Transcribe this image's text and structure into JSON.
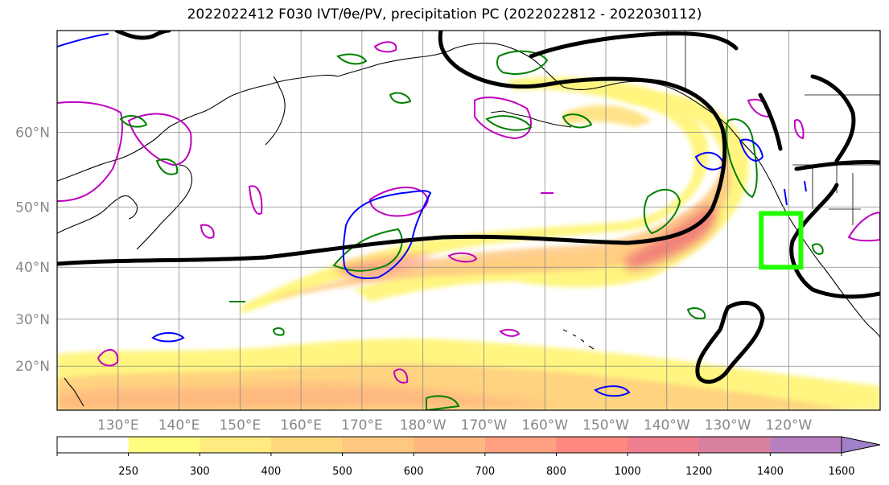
{
  "title": "2022022412 F030 IVT/θe/PV, precipitation PC (2022022812 - 2022030112)",
  "chart_data": {
    "type": "heatmap",
    "map_extent": {
      "lon_range": [
        120,
        255
      ],
      "lat_range": [
        10,
        70
      ]
    },
    "lat_ticks": [
      {
        "value": 20,
        "label": "20°N"
      },
      {
        "value": 30,
        "label": "30°N"
      },
      {
        "value": 40,
        "label": "40°N"
      },
      {
        "value": 50,
        "label": "50°N"
      },
      {
        "value": 60,
        "label": "60°N"
      }
    ],
    "lon_ticks": [
      {
        "value": 130,
        "label": "130°E"
      },
      {
        "value": 140,
        "label": "140°E"
      },
      {
        "value": 150,
        "label": "150°E"
      },
      {
        "value": 160,
        "label": "160°E"
      },
      {
        "value": 170,
        "label": "170°E"
      },
      {
        "value": 180,
        "label": "180°W"
      },
      {
        "value": 190,
        "label": "170°W"
      },
      {
        "value": 200,
        "label": "160°W"
      },
      {
        "value": 210,
        "label": "150°W"
      },
      {
        "value": 220,
        "label": "140°W"
      },
      {
        "value": 230,
        "label": "130°W"
      },
      {
        "value": 240,
        "label": "120°W"
      }
    ],
    "grid": true,
    "colorbar": {
      "levels": [
        250,
        300,
        400,
        500,
        600,
        700,
        800,
        1000,
        1200,
        1400,
        1600
      ],
      "labels": [
        "250",
        "300",
        "400",
        "500",
        "600",
        "700",
        "800",
        "1000",
        "1200",
        "1400",
        "1600"
      ],
      "colors": [
        "#ffffff",
        "#fffd80",
        "#ffeb80",
        "#ffd880",
        "#ffc880",
        "#ffb880",
        "#ffa080",
        "#ff8880",
        "#f08090",
        "#d880a0",
        "#b880c0",
        "#a080c8"
      ],
      "extend": "max"
    },
    "ivt_core_regions": [
      {
        "lon": [
          157,
          183
        ],
        "lat": [
          30,
          36.5
        ],
        "ivt": 700
      },
      {
        "lon": [
          195,
          223
        ],
        "lat": [
          31,
          40
        ],
        "ivt": 1000
      },
      {
        "lon": [
          200,
          235
        ],
        "lat": [
          50,
          58
        ],
        "ivt": 400
      }
    ],
    "highlight_box": {
      "lon": [
        235.5,
        242
      ],
      "lat": [
        40,
        49
      ],
      "color": "#22ff00"
    },
    "contour_colors": {
      "pv": "#000000",
      "theta_e_green": "#008000",
      "theta_e_blue": "#0000ff",
      "magenta": "#c000c0"
    }
  }
}
